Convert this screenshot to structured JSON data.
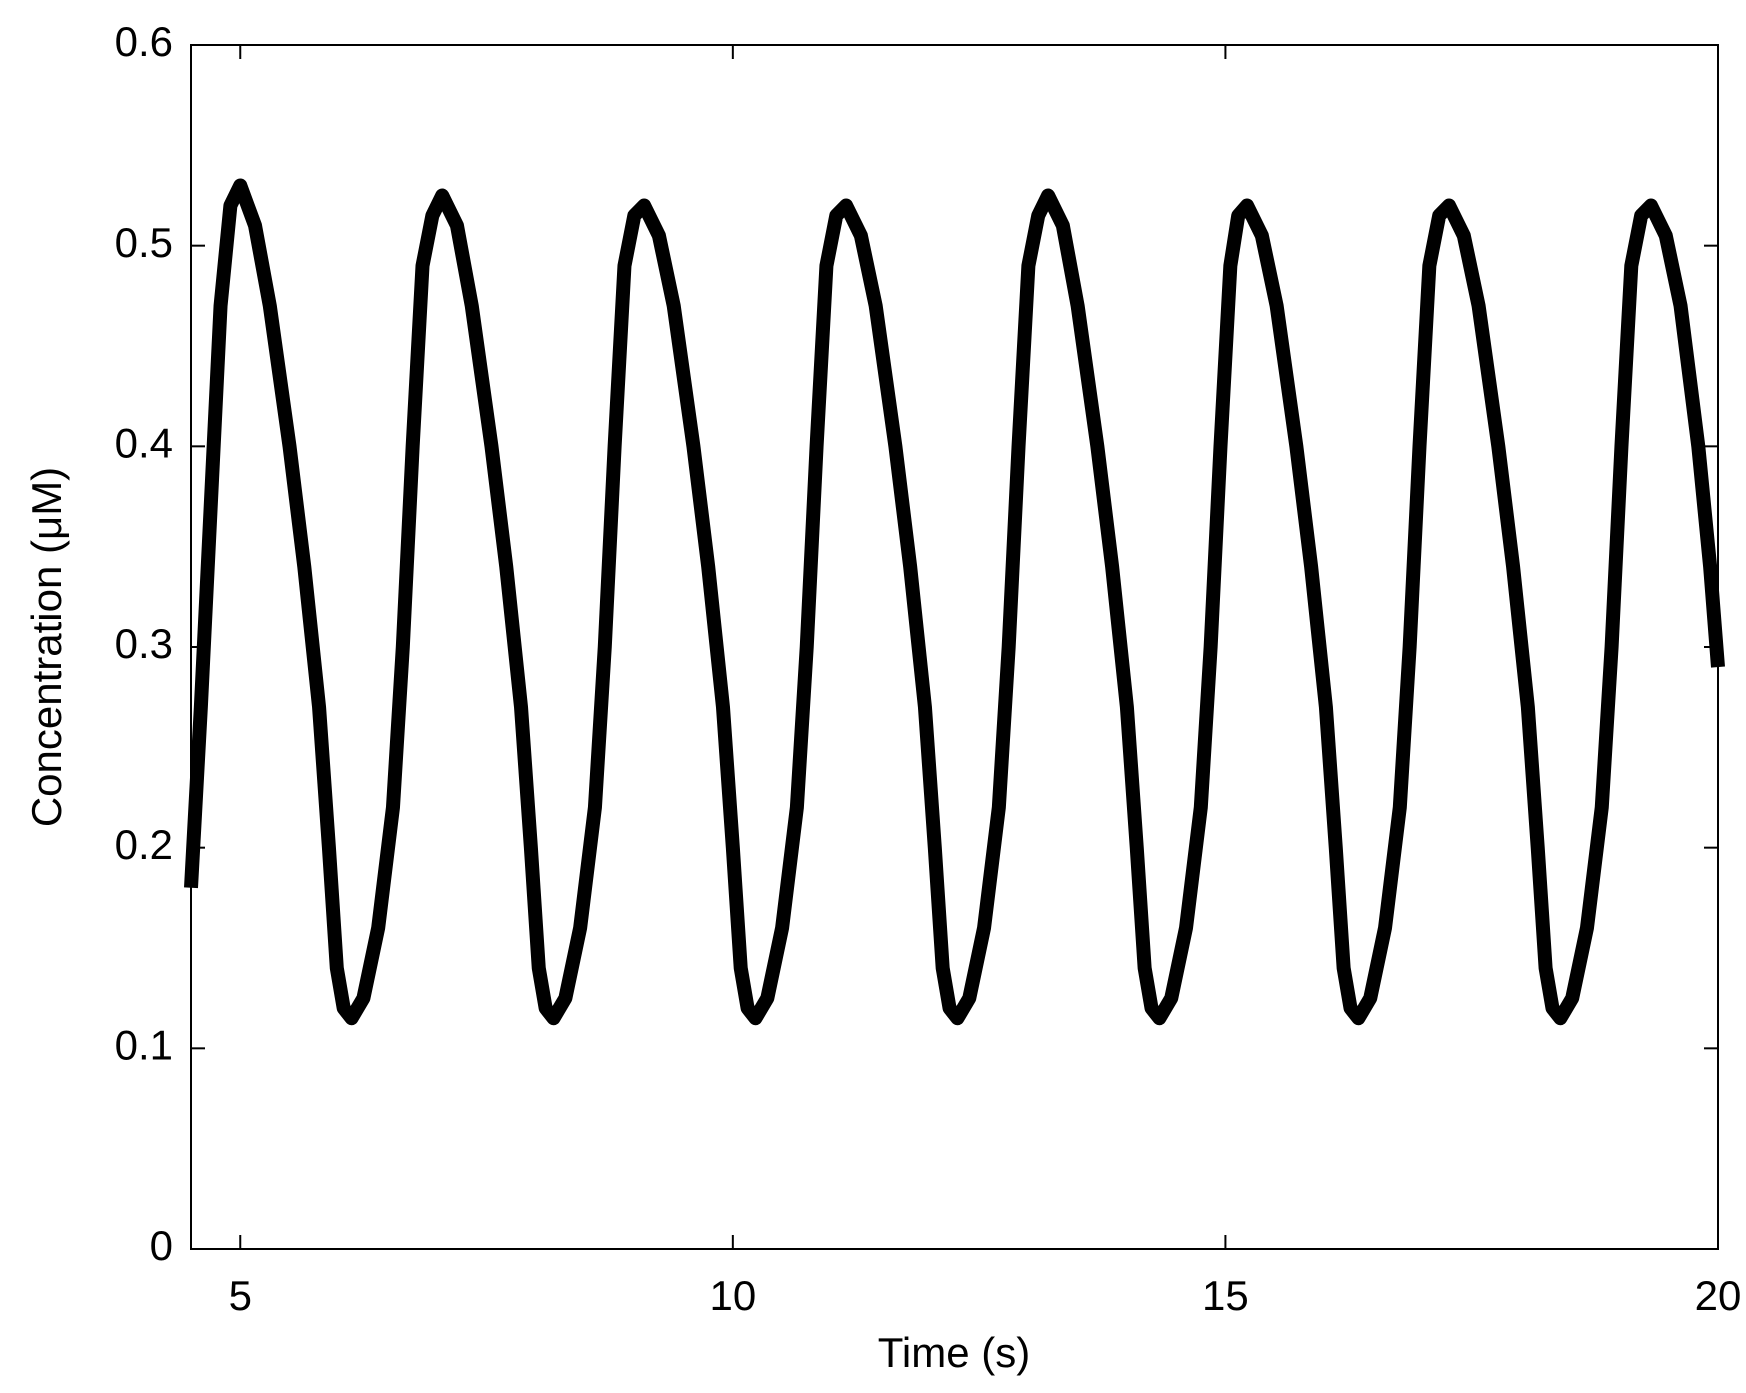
{
  "chart_data": {
    "type": "line",
    "xlabel": "Time (s)",
    "ylabel": "Concentration (μM)",
    "xlim": [
      4.5,
      20
    ],
    "ylim": [
      0,
      0.6
    ],
    "xticks": [
      5,
      10,
      15,
      20
    ],
    "yticks": [
      0,
      0.1,
      0.2,
      0.3,
      0.4,
      0.5,
      0.6
    ],
    "x": [
      4.5,
      4.6,
      4.7,
      4.8,
      4.9,
      5.0,
      5.15,
      5.3,
      5.5,
      5.65,
      5.8,
      5.9,
      5.98,
      6.05,
      6.13,
      6.25,
      6.4,
      6.55,
      6.65,
      6.75,
      6.85,
      6.95,
      7.05,
      7.2,
      7.35,
      7.55,
      7.7,
      7.85,
      7.95,
      8.03,
      8.1,
      8.18,
      8.3,
      8.45,
      8.6,
      8.7,
      8.8,
      8.9,
      9.0,
      9.1,
      9.25,
      9.4,
      9.6,
      9.75,
      9.9,
      10.0,
      10.08,
      10.15,
      10.23,
      10.35,
      10.5,
      10.65,
      10.75,
      10.85,
      10.95,
      11.05,
      11.15,
      11.3,
      11.45,
      11.65,
      11.8,
      11.95,
      12.05,
      12.13,
      12.2,
      12.28,
      12.4,
      12.55,
      12.7,
      12.8,
      12.9,
      13.0,
      13.1,
      13.2,
      13.35,
      13.5,
      13.7,
      13.85,
      14.0,
      14.1,
      14.18,
      14.25,
      14.33,
      14.45,
      14.6,
      14.75,
      14.85,
      14.95,
      15.05,
      15.13,
      15.22,
      15.37,
      15.52,
      15.72,
      15.87,
      16.02,
      16.12,
      16.2,
      16.27,
      16.35,
      16.47,
      16.62,
      16.77,
      16.87,
      16.97,
      17.07,
      17.17,
      17.27,
      17.42,
      17.57,
      17.77,
      17.92,
      18.07,
      18.17,
      18.25,
      18.32,
      18.4,
      18.52,
      18.67,
      18.82,
      18.92,
      19.02,
      19.12,
      19.22,
      19.32,
      19.47,
      19.62,
      19.8,
      19.92,
      20.0
    ],
    "series": [
      {
        "color": "#000000",
        "values": [
          0.18,
          0.27,
          0.37,
          0.47,
          0.52,
          0.53,
          0.51,
          0.47,
          0.4,
          0.34,
          0.27,
          0.2,
          0.14,
          0.12,
          0.115,
          0.125,
          0.16,
          0.22,
          0.3,
          0.4,
          0.49,
          0.515,
          0.525,
          0.51,
          0.47,
          0.4,
          0.34,
          0.27,
          0.2,
          0.14,
          0.12,
          0.115,
          0.125,
          0.16,
          0.22,
          0.3,
          0.4,
          0.49,
          0.515,
          0.52,
          0.505,
          0.47,
          0.4,
          0.34,
          0.27,
          0.2,
          0.14,
          0.12,
          0.115,
          0.125,
          0.16,
          0.22,
          0.3,
          0.4,
          0.49,
          0.515,
          0.52,
          0.505,
          0.47,
          0.4,
          0.34,
          0.27,
          0.2,
          0.14,
          0.12,
          0.115,
          0.125,
          0.16,
          0.22,
          0.3,
          0.4,
          0.49,
          0.515,
          0.525,
          0.51,
          0.47,
          0.4,
          0.34,
          0.27,
          0.2,
          0.14,
          0.12,
          0.115,
          0.125,
          0.16,
          0.22,
          0.3,
          0.4,
          0.49,
          0.515,
          0.52,
          0.505,
          0.47,
          0.4,
          0.34,
          0.27,
          0.2,
          0.14,
          0.12,
          0.115,
          0.125,
          0.16,
          0.22,
          0.3,
          0.4,
          0.49,
          0.515,
          0.52,
          0.505,
          0.47,
          0.4,
          0.34,
          0.27,
          0.2,
          0.14,
          0.12,
          0.115,
          0.125,
          0.16,
          0.22,
          0.3,
          0.4,
          0.49,
          0.515,
          0.52,
          0.505,
          0.47,
          0.4,
          0.34,
          0.29
        ]
      }
    ]
  }
}
